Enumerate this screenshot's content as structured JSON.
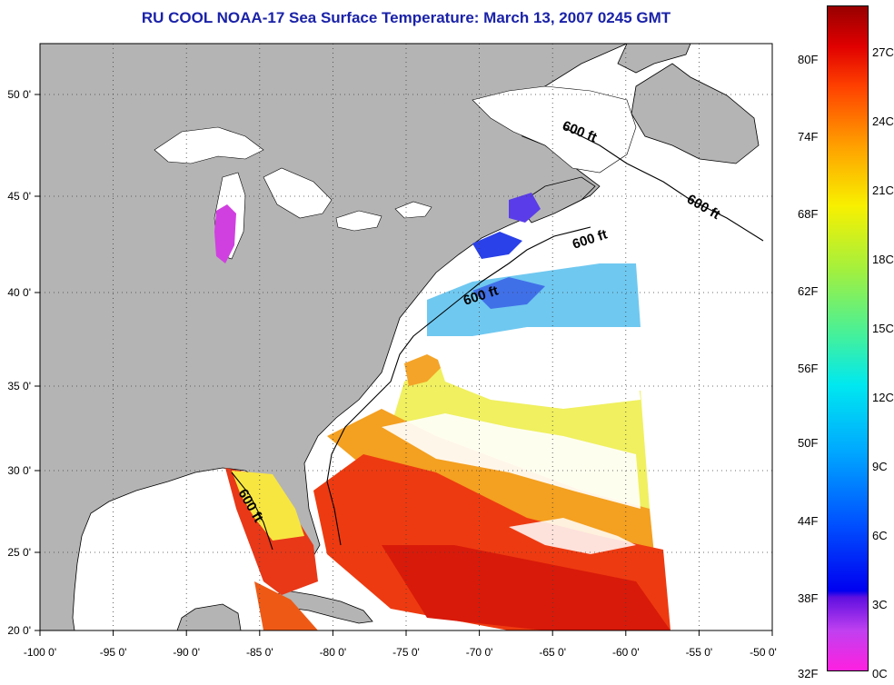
{
  "title": "RU COOL  NOAA-17  Sea Surface Temperature:  March 13, 2007 0245 GMT",
  "axes": {
    "x_ticks": [
      "-100 0'",
      "-95 0'",
      "-90 0'",
      "-85 0'",
      "-80 0'",
      "-75 0'",
      "-70 0'",
      "-65 0'",
      "-60 0'",
      "-55 0'",
      "-50 0'"
    ],
    "y_ticks": [
      "50 0'",
      "45 0'",
      "40 0'",
      "35 0'",
      "30 0'",
      "25 0'",
      "20 0'"
    ],
    "lon_range": [
      -100,
      -50
    ],
    "lat_range": [
      20,
      52.5
    ],
    "grid": "dotted"
  },
  "contour_labels": [
    "600 ft",
    "600 ft",
    "600 ft",
    "600 ft",
    "600 ft"
  ],
  "colorbar": {
    "fahrenheit": [
      "80F",
      "74F",
      "68F",
      "62F",
      "56F",
      "50F",
      "44F",
      "38F",
      "32F"
    ],
    "celsius": [
      "27C",
      "24C",
      "21C",
      "18C",
      "15C",
      "12C",
      "9C",
      "6C",
      "3C",
      "0C"
    ]
  },
  "colors": {
    "title": "#1a22a8",
    "land": "#b4b4b4",
    "cloud_no_data": "#ffffff"
  }
}
